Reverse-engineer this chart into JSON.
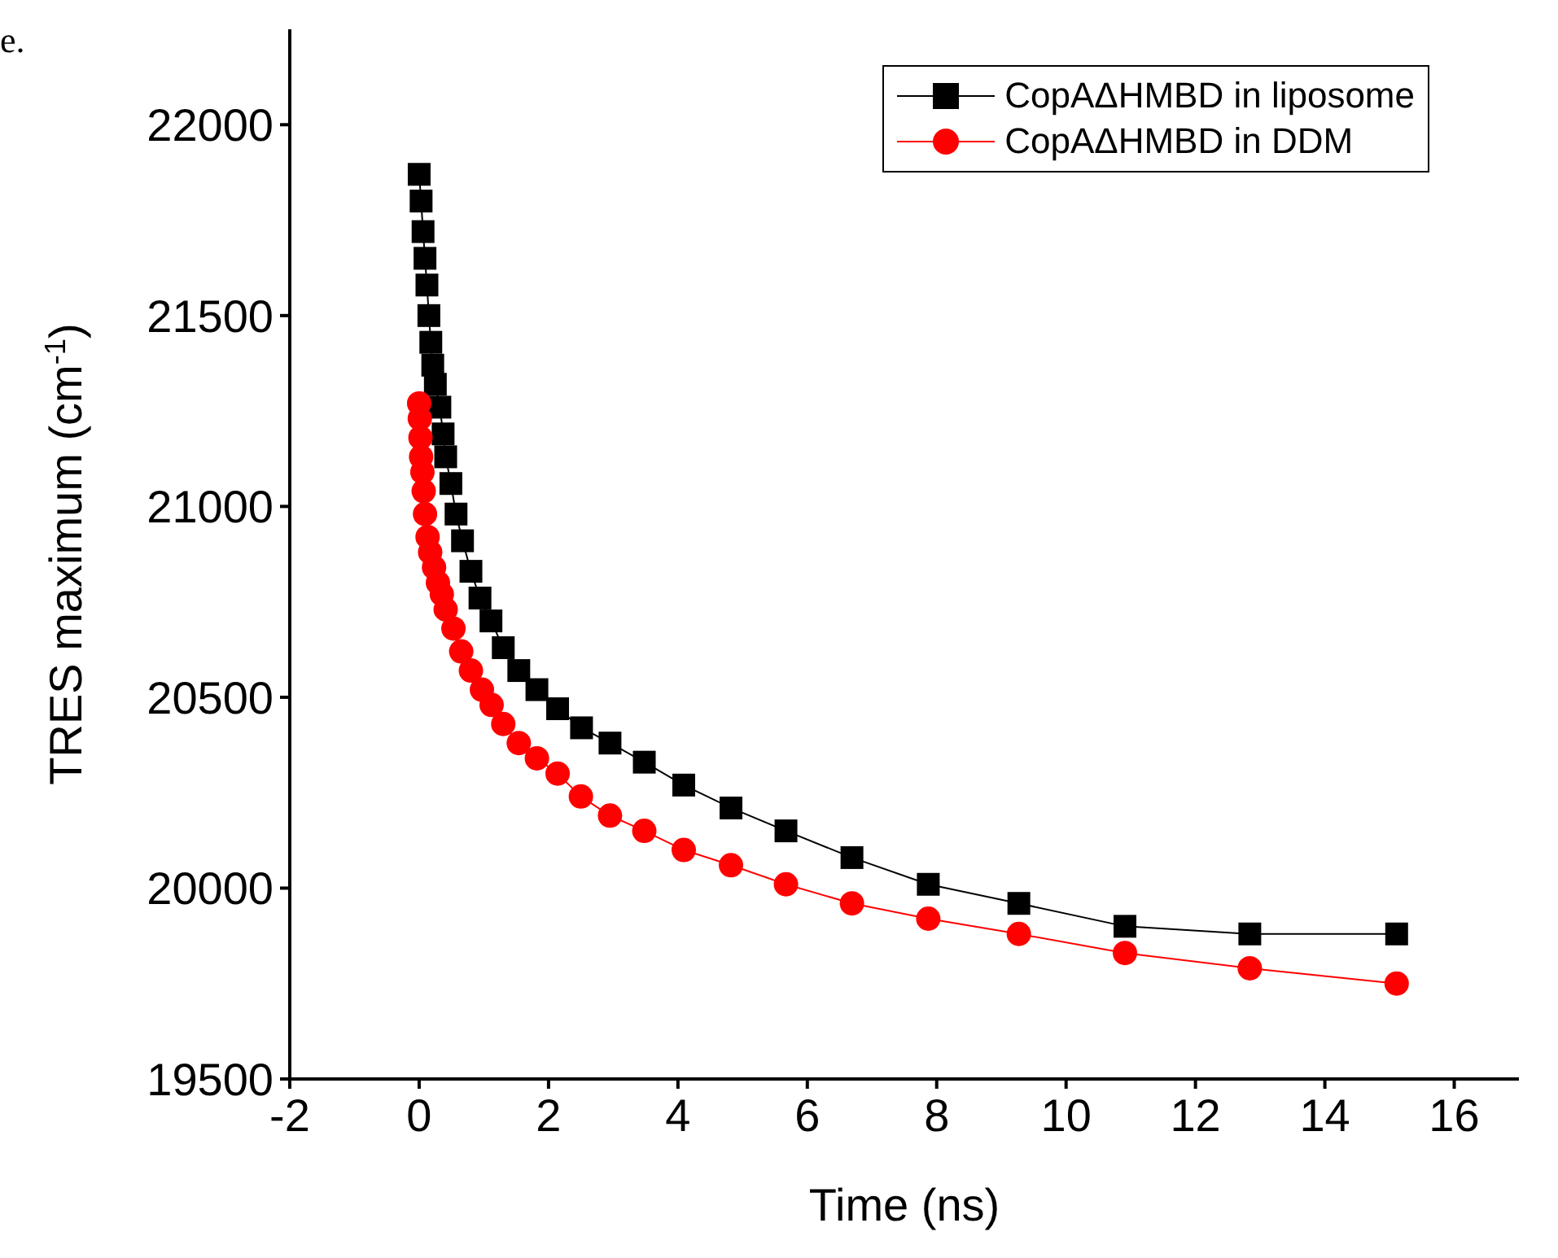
{
  "chart_data": {
    "type": "line",
    "annotations": [
      "e."
    ],
    "xlabel": "Time (ns)",
    "ylabel": "TRES maximum (cm$^{-1}$)",
    "xlim": [
      -2,
      17
    ],
    "xticks": [
      -2,
      0,
      2,
      4,
      6,
      8,
      10,
      12,
      14,
      16
    ],
    "ylim": [
      19500,
      22250
    ],
    "yticks": [
      19500,
      20000,
      20500,
      21000,
      21500,
      22000
    ],
    "grid": false,
    "legend": "top right",
    "line_style": "solid",
    "series": [
      {
        "name": "CopAΔHMBD in liposome",
        "color": "#000000",
        "marker": "square",
        "x": [
          0,
          0.03,
          0.06,
          0.09,
          0.12,
          0.15,
          0.18,
          0.21,
          0.25,
          0.32,
          0.37,
          0.41,
          0.49,
          0.57,
          0.67,
          0.8,
          0.94,
          1.11,
          1.3,
          1.54,
          1.82,
          2.14,
          2.51,
          2.95,
          3.48,
          4.09,
          4.82,
          5.67,
          6.69,
          7.87,
          9.27,
          10.91,
          12.84,
          15.11
        ],
        "values": [
          21870,
          21800,
          21720,
          21650,
          21580,
          21500,
          21430,
          21370,
          21320,
          21260,
          21190,
          21130,
          21060,
          20980,
          20910,
          20830,
          20760,
          20700,
          20630,
          20570,
          20520,
          20470,
          20420,
          20380,
          20330,
          20270,
          20210,
          20150,
          20080,
          20010,
          19960,
          19900,
          19880,
          19880
        ]
      },
      {
        "name": "CopAΔHMBD in DDM",
        "color": "#ff0000",
        "marker": "circle",
        "x": [
          0,
          0.01,
          0.02,
          0.03,
          0.05,
          0.07,
          0.09,
          0.13,
          0.17,
          0.23,
          0.29,
          0.35,
          0.41,
          0.53,
          0.65,
          0.8,
          0.97,
          1.12,
          1.3,
          1.54,
          1.82,
          2.14,
          2.5,
          2.95,
          3.48,
          4.09,
          4.82,
          5.67,
          6.69,
          7.87,
          9.27,
          10.91,
          12.84,
          15.11
        ],
        "values": [
          21270,
          21230,
          21180,
          21130,
          21090,
          21040,
          20980,
          20920,
          20880,
          20840,
          20800,
          20770,
          20730,
          20680,
          20620,
          20570,
          20520,
          20480,
          20430,
          20380,
          20340,
          20300,
          20240,
          20190,
          20150,
          20100,
          20060,
          20010,
          19960,
          19920,
          19880,
          19830,
          19790,
          19750
        ]
      }
    ]
  }
}
